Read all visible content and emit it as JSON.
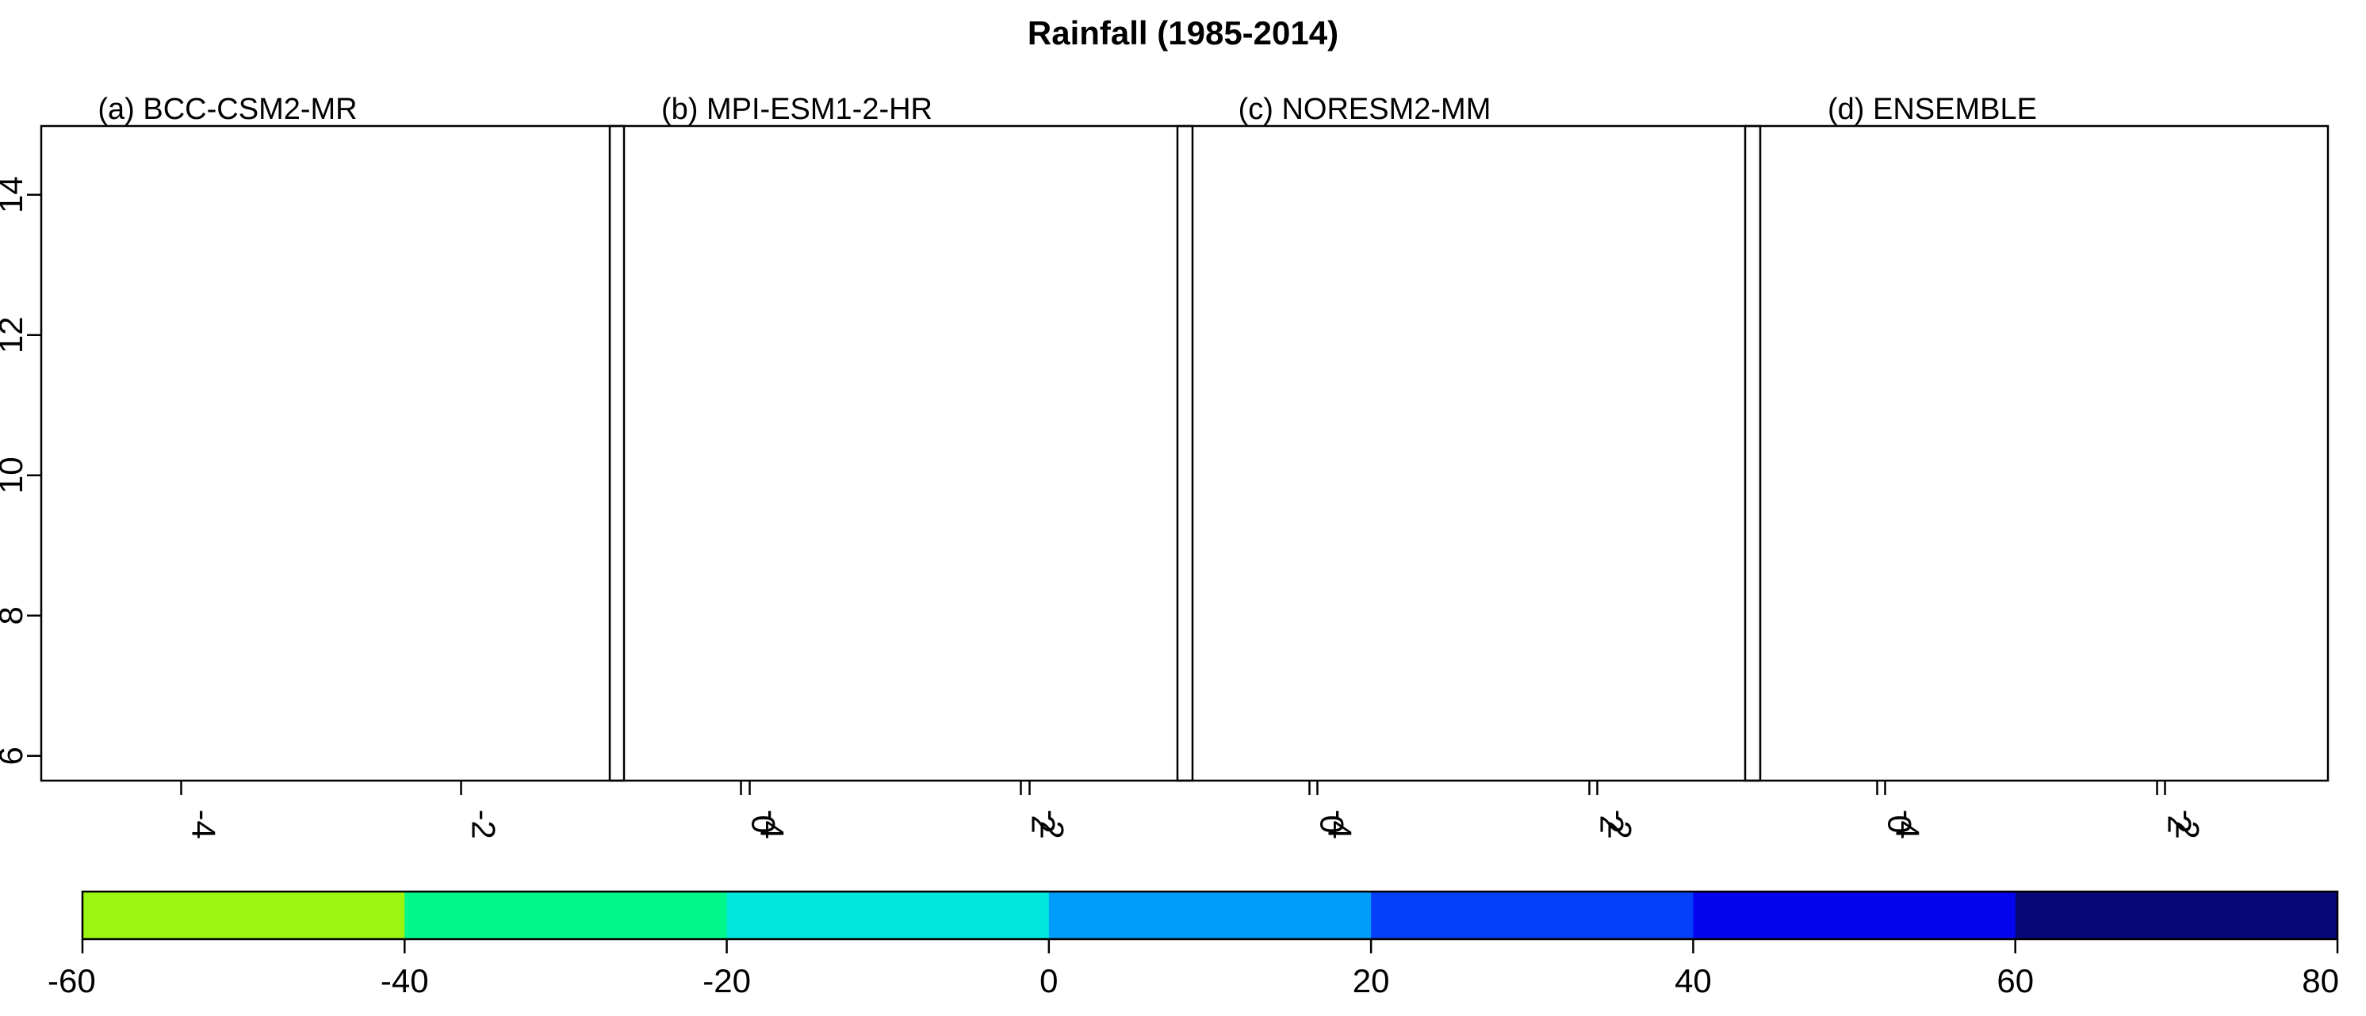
{
  "title": "Rainfall (1985-2014)",
  "legend": {
    "ticks": [
      "-60",
      "-40",
      "-20",
      "0",
      "20",
      "40",
      "60",
      "80"
    ],
    "colors": [
      "#9cf510",
      "#00f98a",
      "#00e8dc",
      "#009efa",
      "#0440fa",
      "#0404ee",
      "#06087a"
    ]
  },
  "axes": {
    "x_ticks": [
      "-4",
      "-2",
      "0",
      "2"
    ],
    "y_ticks": [
      "6",
      "8",
      "10",
      "12",
      "14"
    ]
  },
  "panels": [
    {
      "title": "(a) BCC-CSM2-MR"
    },
    {
      "title": "(b) MPI-ESM1-2-HR"
    },
    {
      "title": "(c) NORESM2-MM"
    },
    {
      "title": "(d) ENSEMBLE"
    }
  ],
  "colors": {
    "frame": "#000000",
    "background": "#ffffff"
  }
}
